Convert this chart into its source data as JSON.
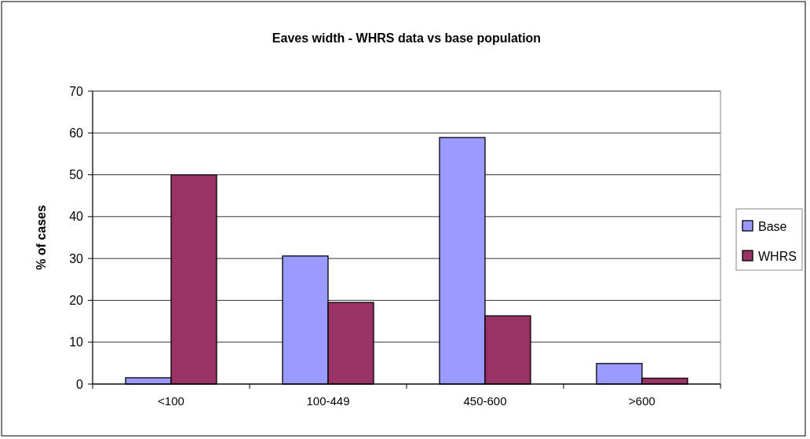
{
  "chart_data": {
    "type": "bar",
    "title": "Eaves width - WHRS data vs base population",
    "ylabel": "%  of cases",
    "categories": [
      "<100",
      "100-449",
      "450-600",
      ">600"
    ],
    "series": [
      {
        "name": "Base",
        "color": "#9999ff",
        "values": [
          1.5,
          30.6,
          58.9,
          4.9
        ]
      },
      {
        "name": "WHRS",
        "color": "#993366",
        "values": [
          50,
          19.5,
          16.3,
          1.4
        ]
      }
    ],
    "ylim": [
      0,
      70
    ],
    "yticks": [
      0,
      10,
      20,
      30,
      40,
      50,
      60,
      70
    ],
    "grid": "y",
    "legend": "right"
  }
}
